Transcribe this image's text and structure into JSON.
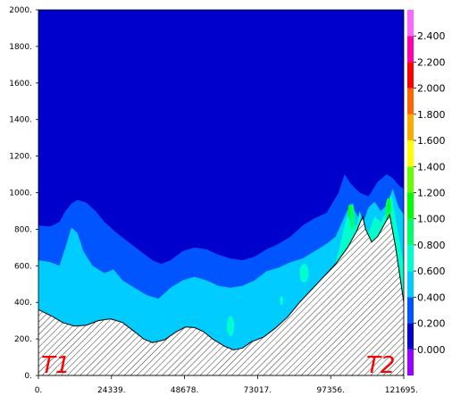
{
  "chart_data": {
    "type": "contour",
    "title": "",
    "xlabel": "",
    "ylabel": "",
    "xlim": [
      0,
      121695
    ],
    "ylim": [
      0,
      2000
    ],
    "x_ticks": [
      "0.",
      "24339.",
      "48678.",
      "73017.",
      "97356.",
      "121695."
    ],
    "y_ticks": [
      "0.",
      "200.",
      "400.",
      "600.",
      "800.",
      "1000.",
      "1200.",
      "1400.",
      "1600.",
      "1800.",
      "2000."
    ],
    "colorbar": {
      "range": [
        -0.2,
        2.6
      ],
      "ticks": [
        "0.000",
        "0.200",
        "0.400",
        "0.600",
        "0.800",
        "1.000",
        "1.200",
        "1.400",
        "1.600",
        "1.800",
        "2.000",
        "2.200",
        "2.400"
      ],
      "levels": [
        -0.2,
        0,
        0.2,
        0.4,
        0.6,
        0.8,
        1.0,
        1.2,
        1.4,
        1.6,
        1.8,
        2.0,
        2.2,
        2.4,
        2.6
      ],
      "colors": [
        "#9900ff",
        "#0000cc",
        "#0055ff",
        "#00ccff",
        "#00ffcc",
        "#00ff66",
        "#00ff00",
        "#66ff00",
        "#ffff00",
        "#ffaa00",
        "#ff6600",
        "#ff0000",
        "#ff00aa",
        "#ff66ff"
      ]
    },
    "terrain": [
      [
        0,
        360
      ],
      [
        2500,
        340
      ],
      [
        5000,
        320
      ],
      [
        8000,
        290
      ],
      [
        12000,
        270
      ],
      [
        16000,
        275
      ],
      [
        20000,
        300
      ],
      [
        24000,
        310
      ],
      [
        28000,
        290
      ],
      [
        32000,
        240
      ],
      [
        35000,
        200
      ],
      [
        38000,
        180
      ],
      [
        42000,
        195
      ],
      [
        46000,
        240
      ],
      [
        49000,
        265
      ],
      [
        52000,
        262
      ],
      [
        55000,
        240
      ],
      [
        58000,
        200
      ],
      [
        62000,
        160
      ],
      [
        65000,
        140
      ],
      [
        68000,
        150
      ],
      [
        71000,
        185
      ],
      [
        75000,
        210
      ],
      [
        79000,
        260
      ],
      [
        83000,
        320
      ],
      [
        87000,
        400
      ],
      [
        91000,
        470
      ],
      [
        95000,
        540
      ],
      [
        99000,
        610
      ],
      [
        103000,
        700
      ],
      [
        106000,
        790
      ],
      [
        108000,
        870
      ],
      [
        109000,
        800
      ],
      [
        111000,
        730
      ],
      [
        113000,
        760
      ],
      [
        115000,
        820
      ],
      [
        117000,
        880
      ],
      [
        119000,
        700
      ],
      [
        121695,
        400
      ]
    ],
    "layers": [
      {
        "level": 0.2,
        "top": [
          [
            0,
            820
          ],
          [
            4000,
            815
          ],
          [
            7000,
            840
          ],
          [
            9000,
            900
          ],
          [
            11000,
            940
          ],
          [
            13000,
            960
          ],
          [
            16000,
            945
          ],
          [
            19000,
            900
          ],
          [
            22000,
            840
          ],
          [
            26000,
            780
          ],
          [
            30000,
            730
          ],
          [
            34000,
            680
          ],
          [
            38000,
            630
          ],
          [
            41000,
            610
          ],
          [
            44000,
            630
          ],
          [
            48000,
            680
          ],
          [
            52000,
            700
          ],
          [
            56000,
            690
          ],
          [
            60000,
            660
          ],
          [
            64000,
            640
          ],
          [
            68000,
            630
          ],
          [
            72000,
            650
          ],
          [
            76000,
            690
          ],
          [
            80000,
            720
          ],
          [
            84000,
            760
          ],
          [
            88000,
            820
          ],
          [
            92000,
            860
          ],
          [
            96000,
            890
          ],
          [
            100000,
            1000
          ],
          [
            102000,
            1100
          ],
          [
            104000,
            1050
          ],
          [
            107000,
            1000
          ],
          [
            110000,
            980
          ],
          [
            113000,
            1060
          ],
          [
            116000,
            1100
          ],
          [
            118000,
            1080
          ],
          [
            120000,
            1040
          ],
          [
            121695,
            1020
          ]
        ]
      },
      {
        "level": 0.4,
        "top": [
          [
            0,
            630
          ],
          [
            4000,
            620
          ],
          [
            7000,
            600
          ],
          [
            9000,
            700
          ],
          [
            11000,
            810
          ],
          [
            13000,
            780
          ],
          [
            15000,
            680
          ],
          [
            18000,
            600
          ],
          [
            22000,
            560
          ],
          [
            25000,
            580
          ],
          [
            28000,
            520
          ],
          [
            32000,
            480
          ],
          [
            36000,
            440
          ],
          [
            40000,
            420
          ],
          [
            44000,
            480
          ],
          [
            48000,
            520
          ],
          [
            52000,
            540
          ],
          [
            56000,
            520
          ],
          [
            60000,
            490
          ],
          [
            64000,
            480
          ],
          [
            68000,
            490
          ],
          [
            72000,
            520
          ],
          [
            76000,
            570
          ],
          [
            80000,
            590
          ],
          [
            84000,
            620
          ],
          [
            88000,
            640
          ],
          [
            92000,
            680
          ],
          [
            96000,
            720
          ],
          [
            99000,
            760
          ],
          [
            102000,
            870
          ],
          [
            104000,
            940
          ],
          [
            106000,
            880
          ],
          [
            108000,
            830
          ],
          [
            110000,
            920
          ],
          [
            112000,
            950
          ],
          [
            114000,
            900
          ],
          [
            116000,
            930
          ],
          [
            118000,
            1020
          ],
          [
            120000,
            920
          ],
          [
            121695,
            880
          ]
        ]
      },
      {
        "level": 0.6,
        "top": [
          [
            95000,
            460
          ],
          [
            98000,
            560
          ],
          [
            100000,
            680
          ],
          [
            102000,
            820
          ],
          [
            103000,
            880
          ],
          [
            104000,
            830
          ],
          [
            106000,
            820
          ],
          [
            107000,
            900
          ],
          [
            108000,
            850
          ],
          [
            110000,
            780
          ],
          [
            112000,
            870
          ],
          [
            114000,
            840
          ],
          [
            116000,
            900
          ],
          [
            117500,
            990
          ],
          [
            119000,
            860
          ],
          [
            121695,
            600
          ]
        ]
      }
    ],
    "blobs": [
      {
        "level": 0.6,
        "cx": 64000,
        "cy": 270,
        "rx": 1200,
        "ry": 55
      },
      {
        "level": 0.6,
        "cx": 88500,
        "cy": 560,
        "rx": 1500,
        "ry": 50
      },
      {
        "level": 0.6,
        "cx": 81000,
        "cy": 410,
        "rx": 600,
        "ry": 25
      },
      {
        "level": 0.8,
        "cx": 104500,
        "cy": 870,
        "rx": 800,
        "ry": 70
      },
      {
        "level": 0.8,
        "cx": 116500,
        "cy": 900,
        "rx": 900,
        "ry": 70
      },
      {
        "level": 1.0,
        "cx": 103500,
        "cy": 900,
        "rx": 400,
        "ry": 35
      },
      {
        "level": 1.0,
        "cx": 116800,
        "cy": 930,
        "rx": 450,
        "ry": 40
      }
    ],
    "annotations": {
      "left": "T1",
      "right": "T2"
    }
  }
}
